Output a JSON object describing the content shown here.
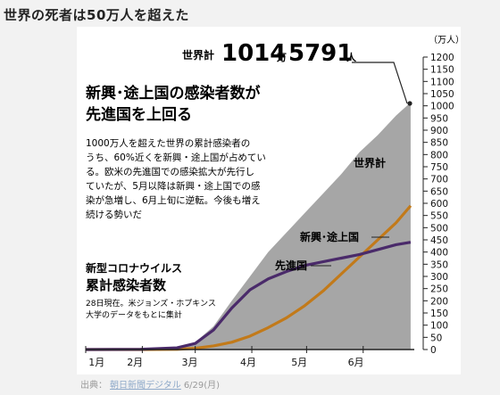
{
  "heading": "世界の死者は50万人を超えた",
  "source": {
    "label": "出典：",
    "link_text": "朝日新聞デジタル",
    "date": "6/29(月)"
  },
  "chart_data": {
    "type": "area",
    "title": "新興･途上国の感染者数が先進国を上回る",
    "description_lines": [
      "1000万人を超えた世界の累計感染者の",
      "うち、60%近くを新興・途上国が占めてい",
      "る。欧米の先進国での感染拡大が先行し",
      "ていたが、5月以降は新興・途上国での感",
      "染が急増し、6月上旬に逆転。今後も増え",
      "続ける勢いだ"
    ],
    "subtitle_small": "新型コロナウイルス",
    "subtitle_large": "累計感染者数",
    "note_lines": [
      "28日現在。米ジョンズ・ホプキンス",
      "大学のデータをもとに集計"
    ],
    "total_callout": {
      "label": "世界計",
      "num1": "1014",
      "unit1": "万",
      "num2": "5791",
      "unit2": "人",
      "value": 1014.5791
    },
    "unit_label": "（万人）",
    "ylim": [
      0,
      1200
    ],
    "yticks": [
      "0",
      "50",
      "100",
      "150",
      "200",
      "250",
      "300",
      "350",
      "400",
      "450",
      "500",
      "550",
      "600",
      "650",
      "700",
      "750",
      "800",
      "850",
      "900",
      "950",
      "1000",
      "1050",
      "1100",
      "1150",
      "1200"
    ],
    "xlim": [
      0,
      180
    ],
    "x_month_labels": [
      {
        "label": "1月",
        "day": 6
      },
      {
        "label": "2月",
        "day": 27
      },
      {
        "label": "3月",
        "day": 57
      },
      {
        "label": "4月",
        "day": 89
      },
      {
        "label": "5月",
        "day": 117
      },
      {
        "label": "6月",
        "day": 148
      }
    ],
    "x_month_ticks": [
      0,
      31,
      60,
      91,
      121,
      152
    ],
    "x": [
      0,
      30,
      50,
      60,
      70,
      80,
      90,
      100,
      110,
      120,
      130,
      140,
      150,
      160,
      170,
      178
    ],
    "series": [
      {
        "name": "世界計",
        "color": "#a6a6a6",
        "values": [
          0,
          1,
          8,
          30,
          95,
          200,
          300,
          400,
          480,
          560,
          640,
          720,
          810,
          880,
          960,
          1014
        ]
      },
      {
        "name": "新興･途上国",
        "color": "#c27a1a",
        "values": [
          0,
          0,
          1,
          5,
          15,
          30,
          55,
          90,
          130,
          180,
          240,
          310,
          380,
          450,
          520,
          590
        ]
      },
      {
        "name": "先進国",
        "color": "#4a2a6a",
        "values": [
          0,
          1,
          7,
          25,
          80,
          170,
          245,
          290,
          320,
          345,
          360,
          375,
          390,
          410,
          430,
          440
        ]
      }
    ]
  }
}
